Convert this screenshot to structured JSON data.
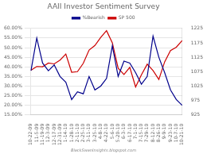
{
  "chart_data": {
    "type": "line",
    "title": "AAII Investor Sentiment Survey",
    "annotations": [
      "BlackSwanInsights.blogspot.com"
    ],
    "categories": [
      "10-22-09",
      "11-5-09",
      "11-19-09",
      "12-3-09",
      "12-17-09",
      "12-31-09",
      "1-14-10",
      "1-28-10",
      "2-11-10",
      "2-25-10",
      "3-11-10",
      "3-25-10",
      "4-8-10",
      "4-22-10",
      "5-6-10",
      "5-20-10",
      "6-3-10",
      "6-17-10",
      "7-1-10",
      "7-15-10",
      "7-29-10",
      "8-12-10",
      "8-26-10",
      "9-9-10",
      "9-23-10",
      "10-7-10",
      "10-21-10"
    ],
    "series": [
      {
        "name": "%Bearish",
        "color": "#00008B",
        "values": [
          38,
          55,
          42,
          38,
          41,
          35,
          32,
          23,
          27,
          26,
          35,
          28,
          30,
          34,
          51,
          35,
          43,
          42,
          37,
          31,
          35,
          56,
          45,
          37,
          28,
          23,
          20
        ]
      },
      {
        "name": "SP 500",
        "color": "#CC0000",
        "axis": "y2",
        "values": [
          1080,
          1093,
          1092,
          1105,
          1102,
          1115,
          1136,
          1073,
          1075,
          1104,
          1150,
          1166,
          1194,
          1217,
          1175,
          1087,
          1065,
          1090,
          1022,
          1064,
          1101,
          1079,
          1048,
          1109,
          1148,
          1160,
          1183
        ]
      }
    ],
    "ylim": [
      15,
      60
    ],
    "yticks": [
      {
        "value": 15,
        "label": "15.00%"
      },
      {
        "value": 20,
        "label": "20.00%"
      },
      {
        "value": 25,
        "label": "25.00%"
      },
      {
        "value": 30,
        "label": "30.00%"
      },
      {
        "value": 35,
        "label": "35.00%"
      },
      {
        "value": 40,
        "label": "40.00%"
      },
      {
        "value": 45,
        "label": "45.00%"
      },
      {
        "value": 50,
        "label": "50.00%"
      },
      {
        "value": 55,
        "label": "55.00%"
      },
      {
        "value": 60,
        "label": "60.00%"
      }
    ],
    "y2lim": [
      925,
      1225
    ],
    "y2ticks": [
      925,
      975,
      1025,
      1075,
      1125,
      1175,
      1225
    ],
    "grid": true,
    "legend": "top"
  }
}
